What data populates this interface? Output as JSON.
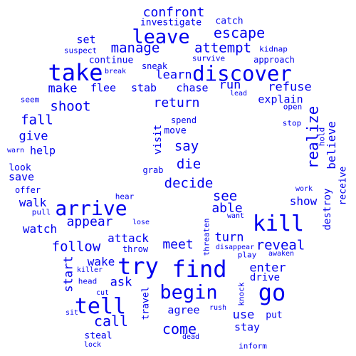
{
  "color": "#0000ee",
  "words": [
    {
      "text": "confront"
    },
    {
      "text": "catch"
    },
    {
      "text": "investigate"
    },
    {
      "text": "leave"
    },
    {
      "text": "escape"
    },
    {
      "text": "set"
    },
    {
      "text": "manage"
    },
    {
      "text": "attempt"
    },
    {
      "text": "kidnap"
    },
    {
      "text": "suspect"
    },
    {
      "text": "survive"
    },
    {
      "text": "continue"
    },
    {
      "text": "approach"
    },
    {
      "text": "take"
    },
    {
      "text": "sneak"
    },
    {
      "text": "break"
    },
    {
      "text": "discover"
    },
    {
      "text": "learn"
    },
    {
      "text": "run"
    },
    {
      "text": "refuse"
    },
    {
      "text": "make"
    },
    {
      "text": "flee"
    },
    {
      "text": "stab"
    },
    {
      "text": "chase"
    },
    {
      "text": "lead"
    },
    {
      "text": "explain"
    },
    {
      "text": "seem"
    },
    {
      "text": "shoot"
    },
    {
      "text": "return"
    },
    {
      "text": "open"
    },
    {
      "text": "fall"
    },
    {
      "text": "spend"
    },
    {
      "text": "stop"
    },
    {
      "text": "move"
    },
    {
      "text": "give"
    },
    {
      "text": "realize"
    },
    {
      "text": "visit"
    },
    {
      "text": "say"
    },
    {
      "text": "hold"
    },
    {
      "text": "warn"
    },
    {
      "text": "help"
    },
    {
      "text": "believe"
    },
    {
      "text": "die"
    },
    {
      "text": "look"
    },
    {
      "text": "grab"
    },
    {
      "text": "save"
    },
    {
      "text": "decide"
    },
    {
      "text": "receive"
    },
    {
      "text": "offer"
    },
    {
      "text": "work"
    },
    {
      "text": "see"
    },
    {
      "text": "hear"
    },
    {
      "text": "walk"
    },
    {
      "text": "arrive"
    },
    {
      "text": "show"
    },
    {
      "text": "pull"
    },
    {
      "text": "able"
    },
    {
      "text": "destroy"
    },
    {
      "text": "appear"
    },
    {
      "text": "lose"
    },
    {
      "text": "want"
    },
    {
      "text": "kill"
    },
    {
      "text": "watch"
    },
    {
      "text": "attack"
    },
    {
      "text": "turn"
    },
    {
      "text": "follow"
    },
    {
      "text": "meet"
    },
    {
      "text": "reveal"
    },
    {
      "text": "throw"
    },
    {
      "text": "disappear"
    },
    {
      "text": "threaten"
    },
    {
      "text": "wake"
    },
    {
      "text": "play"
    },
    {
      "text": "awaken"
    },
    {
      "text": "try"
    },
    {
      "text": "find"
    },
    {
      "text": "start"
    },
    {
      "text": "enter"
    },
    {
      "text": "killer"
    },
    {
      "text": "drive"
    },
    {
      "text": "ask"
    },
    {
      "text": "head"
    },
    {
      "text": "begin"
    },
    {
      "text": "go"
    },
    {
      "text": "tell"
    },
    {
      "text": "cut"
    },
    {
      "text": "knock"
    },
    {
      "text": "travel"
    },
    {
      "text": "agree"
    },
    {
      "text": "rush"
    },
    {
      "text": "use"
    },
    {
      "text": "put"
    },
    {
      "text": "call"
    },
    {
      "text": "sit"
    },
    {
      "text": "come"
    },
    {
      "text": "stay"
    },
    {
      "text": "steal"
    },
    {
      "text": "dead"
    },
    {
      "text": "lock"
    },
    {
      "text": "inform"
    }
  ]
}
